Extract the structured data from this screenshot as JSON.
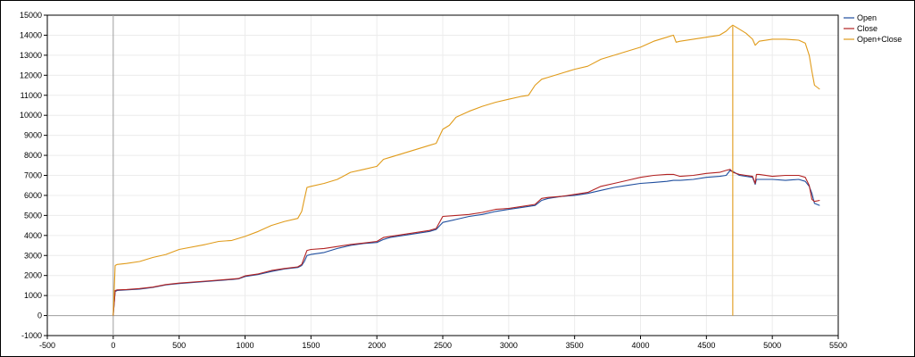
{
  "chart_data": {
    "type": "line",
    "title": "",
    "xlabel": "",
    "ylabel": "",
    "xlim": [
      -500,
      5500
    ],
    "ylim": [
      -1000,
      15000
    ],
    "x_ticks": [
      -500,
      0,
      500,
      1000,
      1500,
      2000,
      2500,
      3000,
      3500,
      4000,
      4500,
      5000,
      5500
    ],
    "y_ticks": [
      -1000,
      0,
      1000,
      2000,
      3000,
      4000,
      5000,
      6000,
      7000,
      8000,
      9000,
      10000,
      11000,
      12000,
      13000,
      14000,
      15000
    ],
    "grid": true,
    "legend": "top-right",
    "series": [
      {
        "name": "Open",
        "color": "#1f4e9e",
        "x": [
          0,
          15,
          30,
          100,
          200,
          300,
          400,
          500,
          700,
          900,
          950,
          1000,
          1100,
          1200,
          1300,
          1400,
          1430,
          1450,
          1470,
          1500,
          1600,
          1700,
          1800,
          1900,
          2000,
          2050,
          2100,
          2200,
          2300,
          2400,
          2450,
          2500,
          2600,
          2700,
          2800,
          2900,
          3000,
          3100,
          3200,
          3250,
          3300,
          3400,
          3500,
          3600,
          3700,
          3800,
          3900,
          4000,
          4100,
          4200,
          4250,
          4300,
          4400,
          4500,
          4600,
          4650,
          4680,
          4700,
          4750,
          4800,
          4850,
          4870,
          4880,
          4900,
          5000,
          5100,
          5200,
          5250,
          5280,
          5300,
          5320,
          5360
        ],
        "y": [
          0,
          1200,
          1250,
          1280,
          1320,
          1400,
          1530,
          1600,
          1700,
          1800,
          1830,
          1950,
          2050,
          2200,
          2330,
          2400,
          2500,
          2700,
          3000,
          3050,
          3150,
          3350,
          3500,
          3600,
          3650,
          3800,
          3900,
          4000,
          4100,
          4200,
          4300,
          4650,
          4800,
          4950,
          5050,
          5200,
          5300,
          5400,
          5500,
          5750,
          5850,
          5950,
          6000,
          6100,
          6250,
          6400,
          6500,
          6600,
          6650,
          6700,
          6750,
          6750,
          6800,
          6900,
          6950,
          7000,
          7250,
          7200,
          7000,
          6950,
          6900,
          6550,
          6800,
          6800,
          6800,
          6750,
          6800,
          6700,
          6450,
          6100,
          5600,
          5500
        ]
      },
      {
        "name": "Close",
        "color": "#b22222",
        "x": [
          0,
          15,
          30,
          100,
          200,
          300,
          400,
          500,
          700,
          900,
          950,
          1000,
          1100,
          1200,
          1300,
          1400,
          1430,
          1450,
          1470,
          1500,
          1600,
          1700,
          1800,
          1900,
          2000,
          2050,
          2100,
          2200,
          2300,
          2400,
          2450,
          2500,
          2600,
          2700,
          2800,
          2900,
          3000,
          3100,
          3200,
          3250,
          3300,
          3400,
          3500,
          3600,
          3700,
          3800,
          3900,
          4000,
          4100,
          4200,
          4250,
          4300,
          4400,
          4500,
          4600,
          4650,
          4680,
          4700,
          4750,
          4800,
          4850,
          4870,
          4880,
          4900,
          5000,
          5100,
          5200,
          5250,
          5280,
          5300,
          5320,
          5360
        ],
        "y": [
          0,
          1250,
          1280,
          1300,
          1350,
          1420,
          1550,
          1620,
          1720,
          1820,
          1850,
          1980,
          2080,
          2250,
          2350,
          2430,
          2550,
          2900,
          3250,
          3300,
          3350,
          3450,
          3550,
          3620,
          3700,
          3900,
          3950,
          4050,
          4150,
          4250,
          4350,
          4950,
          5000,
          5050,
          5150,
          5300,
          5350,
          5450,
          5550,
          5850,
          5900,
          5950,
          6050,
          6150,
          6450,
          6600,
          6750,
          6900,
          7000,
          7050,
          7050,
          6950,
          7000,
          7100,
          7150,
          7250,
          7300,
          7150,
          7050,
          7000,
          6950,
          6600,
          7050,
          7050,
          6950,
          7000,
          7000,
          6900,
          6500,
          5800,
          5700,
          5750
        ]
      },
      {
        "name": "Open+Close",
        "color": "#e09b1a",
        "x": [
          0,
          15,
          30,
          100,
          200,
          300,
          400,
          500,
          700,
          800,
          900,
          1000,
          1100,
          1200,
          1300,
          1400,
          1430,
          1450,
          1470,
          1500,
          1600,
          1700,
          1800,
          1900,
          2000,
          2050,
          2100,
          2200,
          2300,
          2400,
          2450,
          2500,
          2550,
          2600,
          2700,
          2800,
          2900,
          3000,
          3100,
          3150,
          3200,
          3250,
          3300,
          3400,
          3500,
          3600,
          3700,
          3750,
          3800,
          3900,
          4000,
          4100,
          4200,
          4250,
          4270,
          4300,
          4400,
          4500,
          4600,
          4650,
          4680,
          4700,
          4750,
          4800,
          4850,
          4870,
          4900,
          5000,
          5100,
          5200,
          5250,
          5280,
          5300,
          5320,
          5360
        ],
        "y": [
          0,
          2500,
          2550,
          2600,
          2700,
          2900,
          3050,
          3300,
          3550,
          3700,
          3750,
          3950,
          4200,
          4500,
          4700,
          4850,
          5200,
          5800,
          6400,
          6450,
          6600,
          6800,
          7150,
          7300,
          7450,
          7800,
          7900,
          8100,
          8300,
          8500,
          8600,
          9300,
          9500,
          9900,
          10200,
          10450,
          10650,
          10800,
          10950,
          11000,
          11500,
          11800,
          11900,
          12100,
          12300,
          12450,
          12800,
          12900,
          13000,
          13200,
          13400,
          13700,
          13900,
          14000,
          13650,
          13700,
          13800,
          13900,
          14000,
          14200,
          14400,
          14500,
          14300,
          14100,
          13800,
          13500,
          13700,
          13800,
          13800,
          13750,
          13600,
          13000,
          12200,
          11500,
          11300
        ]
      }
    ],
    "spikes": [
      {
        "series": "Open+Close",
        "x": 4700,
        "y_from": 14450,
        "y_to": 0
      }
    ]
  }
}
